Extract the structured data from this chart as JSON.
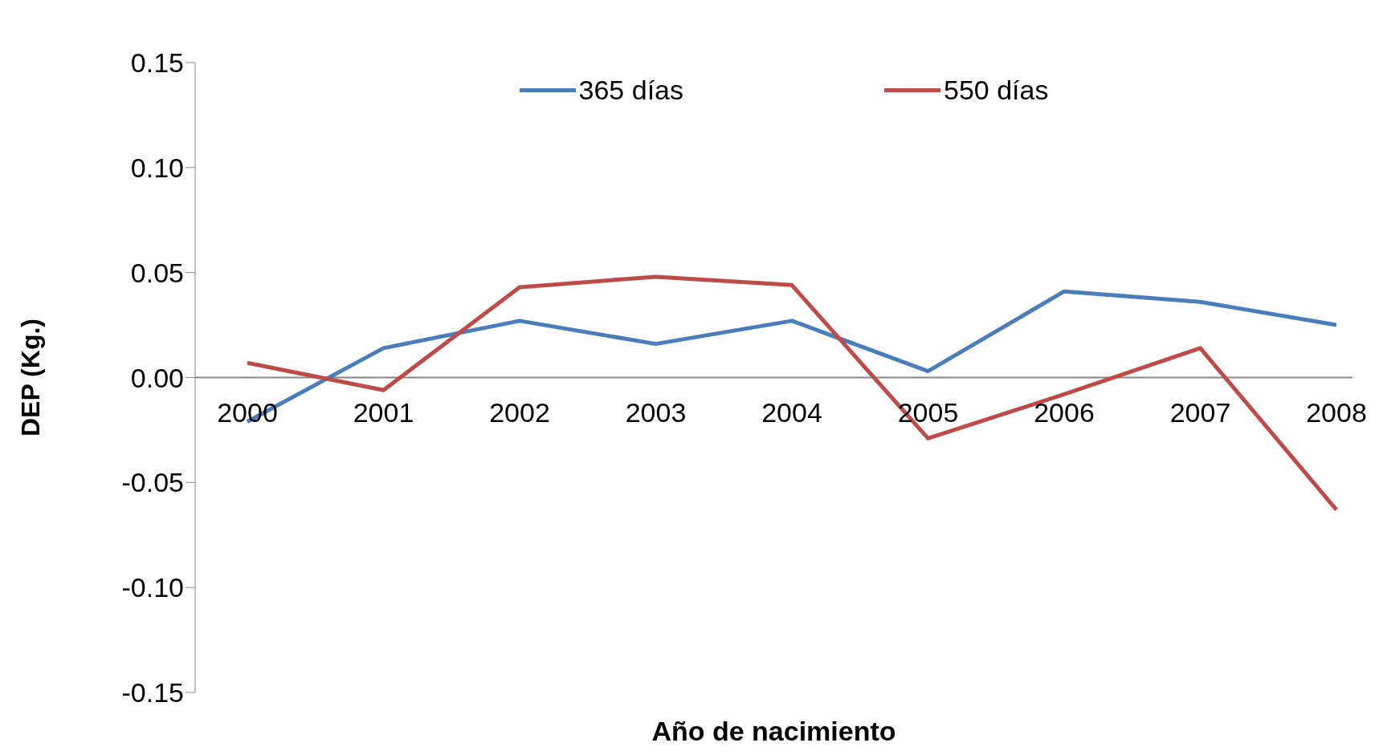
{
  "chart_data": {
    "type": "line",
    "xlabel": "Año de nacimiento",
    "ylabel": "DEP (Kg.)",
    "categories": [
      "2000",
      "2001",
      "2002",
      "2003",
      "2004",
      "2005",
      "2006",
      "2007",
      "2008"
    ],
    "series": [
      {
        "name": "365 días",
        "color": "#4a7ebb",
        "values": [
          -0.021,
          0.014,
          0.027,
          0.016,
          0.027,
          0.003,
          0.041,
          0.036,
          0.025
        ]
      },
      {
        "name": "550 días",
        "color": "#be4b48",
        "values": [
          0.007,
          -0.006,
          0.043,
          0.048,
          0.044,
          -0.029,
          -0.008,
          0.014,
          -0.063
        ]
      }
    ],
    "ylim": [
      -0.15,
      0.15
    ],
    "yticks": [
      {
        "value": -0.15,
        "label": "-0.15"
      },
      {
        "value": -0.1,
        "label": "-0.10"
      },
      {
        "value": -0.05,
        "label": "-0.05"
      },
      {
        "value": 0,
        "label": "0.00"
      },
      {
        "value": 0.05,
        "label": "0.05"
      },
      {
        "value": 0.1,
        "label": "0.10"
      },
      {
        "value": 0.15,
        "label": "0.15"
      }
    ],
    "legend": "top",
    "marker": "none",
    "line_style": "solid"
  }
}
